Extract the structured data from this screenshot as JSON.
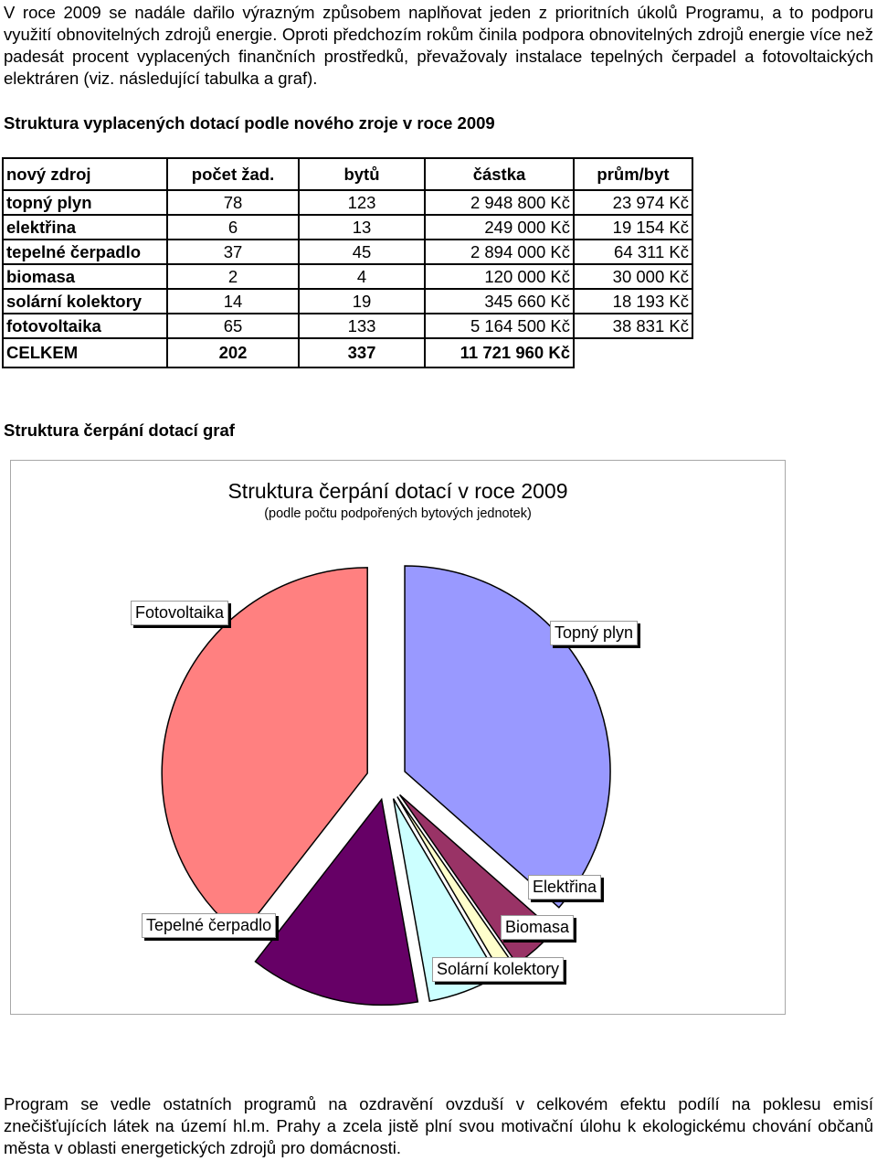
{
  "intro_text": "V roce 2009 se nadále dařilo výrazným způsobem naplňovat jeden z prioritních úkolů Programu, a to podporu využití obnovitelných zdrojů energie. Oproti předchozím rokům činila podpora obnovitelných zdrojů energie více než padesát procent vyplacených finančních prostředků, převažovaly instalace tepelných čerpadel a fotovoltaických elektráren (viz. následující tabulka a graf).",
  "table_heading": "Struktura vyplacených dotací podle nového zroje v roce 2009",
  "table": {
    "headers": [
      "nový zdroj",
      "počet žad.",
      "bytů",
      "částka",
      "prům/byt"
    ],
    "rows": [
      [
        "topný plyn",
        "78",
        "123",
        "2 948 800 Kč",
        "23 974 Kč"
      ],
      [
        "elektřina",
        "6",
        "13",
        "249 000 Kč",
        "19 154 Kč"
      ],
      [
        "tepelné čerpadlo",
        "37",
        "45",
        "2 894 000 Kč",
        "64 311 Kč"
      ],
      [
        "biomasa",
        "2",
        "4",
        "120 000 Kč",
        "30 000 Kč"
      ],
      [
        "solární kolektory",
        "14",
        "19",
        "345 660 Kč",
        "18 193 Kč"
      ],
      [
        "fotovoltaika",
        "65",
        "133",
        "5 164 500 Kč",
        "38 831 Kč"
      ]
    ],
    "total": [
      "CELKEM",
      "202",
      "337",
      "11 721 960 Kč"
    ]
  },
  "chart_heading": "Struktura čerpání dotací graf",
  "chart_data": {
    "type": "pie",
    "title": "Struktura čerpání dotací v roce 2009",
    "subtitle": "(podle počtu podpořených bytových jednotek)",
    "slices": [
      {
        "label": "Topný plyn",
        "value": 123,
        "color": "#9999ff"
      },
      {
        "label": "Elektřina",
        "value": 13,
        "color": "#993366"
      },
      {
        "label": "Biomasa",
        "value": 4,
        "color": "#ffffcc"
      },
      {
        "label": "Solární kolektory",
        "value": 19,
        "color": "#ccffff"
      },
      {
        "label": "Tepelné čerpadlo",
        "value": 45,
        "color": "#660066"
      },
      {
        "label": "Fotovoltaika",
        "value": 133,
        "color": "#ff8080"
      }
    ],
    "exploded": true
  },
  "closing_text": "Program se vedle ostatních programů na ozdravění ovzduší v celkovém efektu podílí na poklesu emisí znečišťujících látek na území hl.m. Prahy a zcela jistě plní svou motivační úlohu k ekologickému chování občanů města v oblasti energetických zdrojů pro domácnosti."
}
